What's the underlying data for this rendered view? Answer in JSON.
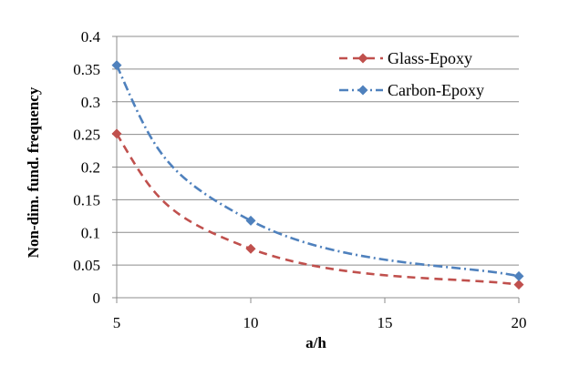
{
  "chart_data": {
    "type": "line",
    "title": "",
    "xlabel": "a/h",
    "ylabel": "Non-dim. fund. frequency",
    "xlim": [
      5,
      20
    ],
    "ylim": [
      0,
      0.4
    ],
    "x_ticks": [
      5,
      10,
      15,
      20
    ],
    "x_tick_labels": [
      "5",
      "10",
      "15",
      "20"
    ],
    "y_ticks": [
      0,
      0.05,
      0.1,
      0.15,
      0.2,
      0.25,
      0.3,
      0.35,
      0.4
    ],
    "y_tick_labels": [
      "0",
      "0.05",
      "0.1",
      "0.15",
      "0.2",
      "0.25",
      "0.3",
      "0.35",
      "0.4"
    ],
    "grid": "horizontal",
    "legend_position": "top-right",
    "series": [
      {
        "name": "Glass-Epoxy",
        "color": "#c0504d",
        "line_style": "dashed",
        "marker": "diamond",
        "x": [
          5,
          10,
          20
        ],
        "y": [
          0.251,
          0.075,
          0.02
        ]
      },
      {
        "name": "Carbon-Epoxy",
        "color": "#4f81bd",
        "line_style": "dash-dot",
        "marker": "diamond",
        "x": [
          5,
          10,
          20
        ],
        "y": [
          0.356,
          0.118,
          0.033
        ]
      }
    ]
  }
}
